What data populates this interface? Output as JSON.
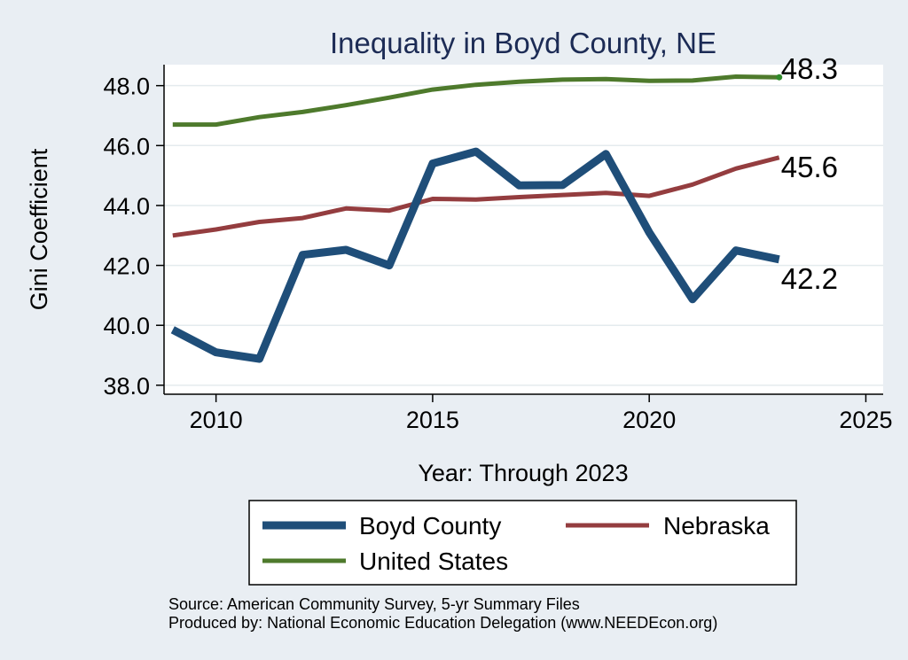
{
  "chart_data": {
    "type": "line",
    "title": "Inequality in Boyd County, NE",
    "xlabel": "Year: Through 2023",
    "ylabel": "Gini Coefficient",
    "xlim": [
      2008.8,
      2025.4
    ],
    "ylim": [
      37.7,
      48.7
    ],
    "xticks": [
      2010,
      2015,
      2020,
      2025
    ],
    "xtick_labels": [
      "2010",
      "2015",
      "2020",
      "2025"
    ],
    "yticks": [
      38,
      40,
      42,
      44,
      46,
      48
    ],
    "ytick_labels": [
      "38.0",
      "40.0",
      "42.0",
      "44.0",
      "46.0",
      "48.0"
    ],
    "grid": true,
    "x": [
      2009,
      2010,
      2011,
      2012,
      2013,
      2014,
      2015,
      2016,
      2017,
      2018,
      2019,
      2020,
      2021,
      2022,
      2023
    ],
    "series": [
      {
        "name": "Boyd County",
        "color": "#1f4e79",
        "values": [
          39.85,
          39.1,
          38.88,
          42.35,
          42.52,
          42.0,
          45.4,
          45.8,
          44.67,
          44.68,
          45.72,
          43.1,
          40.87,
          42.5,
          42.2
        ],
        "end_label": "42.2"
      },
      {
        "name": "Nebraska",
        "color": "#943d3f",
        "values": [
          43.0,
          43.2,
          43.45,
          43.58,
          43.9,
          43.83,
          44.22,
          44.2,
          44.28,
          44.35,
          44.42,
          44.32,
          44.7,
          45.23,
          45.6
        ],
        "end_label": "45.6"
      },
      {
        "name": "United States",
        "color": "#4e7a2c",
        "values": [
          46.7,
          46.7,
          46.95,
          47.12,
          47.35,
          47.6,
          47.87,
          48.03,
          48.13,
          48.2,
          48.22,
          48.16,
          48.17,
          48.3,
          48.28
        ],
        "end_label": "48.3"
      }
    ],
    "legend": {
      "position": "bottom",
      "entries": [
        "Boyd County",
        "Nebraska",
        "United States"
      ]
    },
    "notes": [
      "Source: American Community Survey, 5-yr Summary Files",
      "Produced by: National Economic Education Delegation (www.NEEDEcon.org)"
    ]
  }
}
